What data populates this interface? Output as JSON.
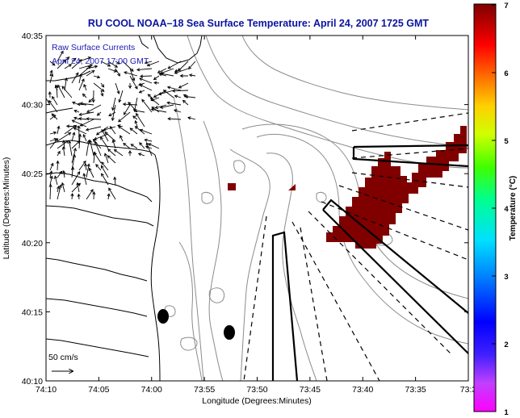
{
  "title": "RU COOL  NOAA–18  Sea Surface Temperature:  April 24, 2007 1725 GMT",
  "annotation": {
    "line1": "Raw Surface Currents",
    "line2": "April 24, 2007 17:00 GMT"
  },
  "scale_label": "50 cm/s",
  "x_axis": {
    "label": "Longitude (Degrees:Minutes)",
    "ticks": [
      "74:10",
      "74:05",
      "74:00",
      "73:55",
      "73:50",
      "73:45",
      "73:40",
      "73:35",
      "73:3"
    ]
  },
  "y_axis": {
    "label": "Latitude (Degrees:Minutes)",
    "ticks": [
      "40:35",
      "40:30",
      "40:25",
      "40:20",
      "40:15",
      "40:10"
    ]
  },
  "colorbar": {
    "label": "Temperature (°C)",
    "ticks": [
      "7",
      "6",
      "5",
      "4",
      "3",
      "2",
      "1"
    ],
    "min": 1,
    "max": 7
  },
  "colors": {
    "title": "#0a14a0",
    "annotation": "#1a1ab4",
    "sst_patch": "#800000",
    "contours": "#8c8c8c"
  }
}
